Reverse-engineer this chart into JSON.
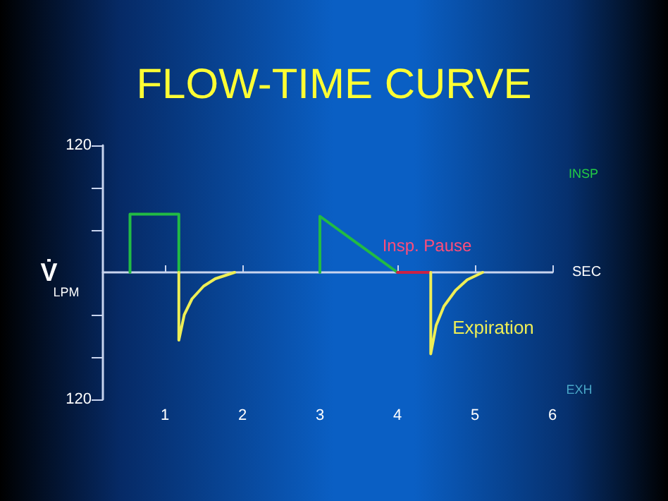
{
  "chart_data": {
    "type": "line",
    "title": "FLOW-TIME CURVE",
    "xlabel": "SEC",
    "ylabel": "V̇",
    "xlim": [
      0.2,
      6
    ],
    "xticks": [
      1,
      2,
      3,
      4,
      5,
      6
    ],
    "ylim": [
      -120,
      120
    ],
    "yticks": [
      {
        "value": -120,
        "label": "120"
      },
      {
        "value": -80,
        "label": null
      },
      {
        "value": -40,
        "label": null
      },
      {
        "value": 40,
        "label": null
      },
      {
        "value": 80,
        "label": null
      },
      {
        "value": 120,
        "label": "120"
      }
    ],
    "series": [
      {
        "color": "#22bb44",
        "x": [
          0.55,
          0.55,
          1.18,
          1.18
        ],
        "values": [
          0,
          55,
          55,
          0
        ]
      },
      {
        "color": "#22bb44",
        "x": [
          3.0,
          3.0,
          4.0
        ],
        "values": [
          0,
          53,
          0
        ]
      },
      {
        "color": "#cc2244",
        "x": [
          4.0,
          4.43
        ],
        "values": [
          0,
          0
        ]
      },
      {
        "color": "#eeee55",
        "x": [
          1.18,
          1.18,
          1.25,
          1.35,
          1.5,
          1.65,
          1.9
        ],
        "values": [
          0,
          -64,
          -40,
          -25,
          -13,
          -6,
          0
        ]
      },
      {
        "color": "#eeee55",
        "x": [
          4.43,
          4.43,
          4.5,
          4.6,
          4.75,
          4.9,
          5.1
        ],
        "values": [
          0,
          -77,
          -50,
          -32,
          -17,
          -7,
          0
        ]
      }
    ],
    "annotations": [
      "LPM",
      "INSP",
      "EXH",
      "Insp. Pause",
      "Expiration"
    ],
    "marker": "none",
    "line_style": "solid"
  }
}
